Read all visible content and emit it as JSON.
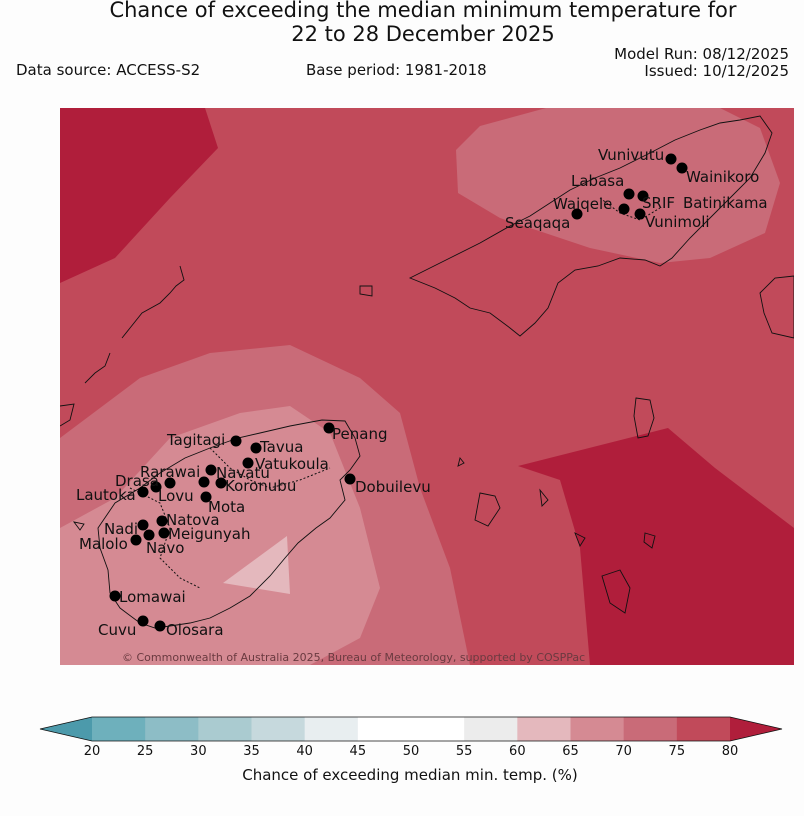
{
  "title": {
    "line1": "Chance of exceeding the median minimum temperature for",
    "line2": "22 to 28 December 2025"
  },
  "meta": {
    "data_source": "Data source: ACCESS-S2",
    "base_period": "Base period: 1981-2018",
    "model_run": "Model Run: 08/12/2025",
    "issued": "Issued: 10/12/2025"
  },
  "copyright": "© Commonwealth of Australia 2025, Bureau of Meteorology, supported by COSPPac",
  "places": {
    "vunivutu": "Vunivutu",
    "wainikoro": "Wainikoro",
    "labasa": "Labasa",
    "waiqele": "Waiqele",
    "srif": "SRIF",
    "batinikama": "Batinikama",
    "seaqaqa": "Seaqaqa",
    "vunimoli": "Vunimoli",
    "penang": "Penang",
    "tagitagi": "Tagitagi",
    "tavua": "Tavua",
    "vatukoula": "Vatukoula",
    "rarawai": "Rarawai",
    "navatu": "Navatu",
    "drasa": "Drasa",
    "koronubu": "Koronubu",
    "lautoka": "Lautoka",
    "lovu": "Lovu",
    "mota": "Mota",
    "dobuilevu": "Dobuilevu",
    "natova": "Natova",
    "nadi": "Nadi",
    "meigunyah": "Meigunyah",
    "malolo": "Malolo",
    "navo": "Navo",
    "lomawai": "Lomawai",
    "cuvu": "Cuvu",
    "olosara": "Olosara"
  },
  "colorbar": {
    "title": "Chance of exceeding median min. temp. (%)",
    "ticks": [
      "20",
      "25",
      "30",
      "35",
      "40",
      "45",
      "50",
      "55",
      "60",
      "65",
      "70",
      "75",
      "80"
    ],
    "colors": [
      "#6eb0bc",
      "#8dbdc6",
      "#aacbd0",
      "#c6d9dd",
      "#e8eef0",
      "#ffffff",
      "#ffffff",
      "#ececec",
      "#e4b8bd",
      "#d58a93",
      "#c96b78",
      "#c14a5a"
    ],
    "under_color": "#4c9aab",
    "over_color": "#b01e3b"
  }
}
